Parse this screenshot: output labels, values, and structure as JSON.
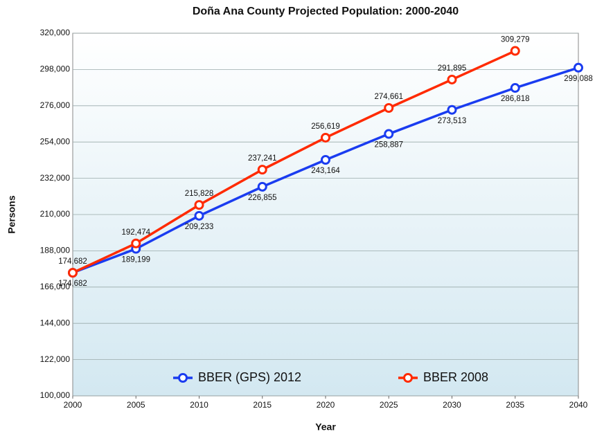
{
  "chart_data": {
    "type": "line",
    "title": "Doña Ana County Projected Population: 2000-2040",
    "x_label": "Year",
    "y_label": "Persons",
    "x": [
      2000,
      2005,
      2010,
      2015,
      2020,
      2025,
      2030,
      2035,
      2040
    ],
    "xlim": [
      2000,
      2040
    ],
    "xticks": [
      2000,
      2005,
      2010,
      2015,
      2020,
      2025,
      2030,
      2035,
      2040
    ],
    "ylim": [
      100000,
      320000
    ],
    "yticks": [
      {
        "value": 100000,
        "label": "100,000"
      },
      {
        "value": 122000,
        "label": "122,000"
      },
      {
        "value": 144000,
        "label": "144,000"
      },
      {
        "value": 166000,
        "label": "166,000"
      },
      {
        "value": 188000,
        "label": "188,000"
      },
      {
        "value": 210000,
        "label": "210,000"
      },
      {
        "value": 232000,
        "label": "232,000"
      },
      {
        "value": 254000,
        "label": "254,000"
      },
      {
        "value": 276000,
        "label": "276,000"
      },
      {
        "value": 298000,
        "label": "298,000"
      },
      {
        "value": 320000,
        "label": "320,000"
      }
    ],
    "grid": true,
    "legend": "bottom",
    "series": [
      {
        "name": "BBER (GPS) 2012",
        "color": "#1a3cf0",
        "values": [
          174682,
          189199,
          209233,
          226855,
          243164,
          258887,
          273513,
          286818,
          299088
        ],
        "value_labels": [
          "174,682",
          "189,199",
          "209,233",
          "226,855",
          "243,164",
          "258,887",
          "273,513",
          "286,818",
          "299,088"
        ]
      },
      {
        "name": "BBER 2008",
        "color": "#ff2a00",
        "values": [
          174682,
          192474,
          215828,
          237241,
          256619,
          274661,
          291895,
          309279,
          null
        ],
        "value_labels": [
          "174,682",
          "192,474",
          "215,828",
          "237,241",
          "256,619",
          "274,661",
          "291,895",
          "309,279",
          null
        ]
      }
    ]
  }
}
